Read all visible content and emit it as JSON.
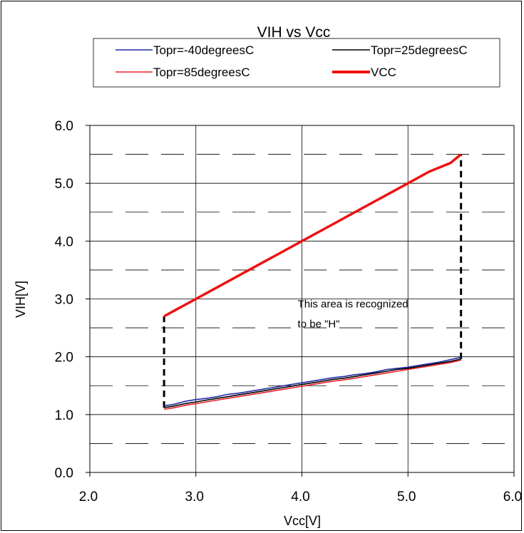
{
  "chart_data": {
    "type": "line",
    "title": "VIH vs Vcc",
    "xlabel": "Vcc[V]",
    "ylabel": "VIH[V]",
    "xlim": [
      2.0,
      6.0
    ],
    "ylim": [
      0.0,
      6.0
    ],
    "xticks": [
      2.0,
      3.0,
      4.0,
      5.0,
      6.0
    ],
    "xtick_labels": [
      "2.0",
      "3.0",
      "4.0",
      "5.0",
      "6.0"
    ],
    "yticks": [
      0.0,
      1.0,
      2.0,
      3.0,
      4.0,
      5.0,
      6.0
    ],
    "ytick_labels": [
      "0.0",
      "1.0",
      "2.0",
      "3.0",
      "4.0",
      "5.0",
      "6.0"
    ],
    "grid": true,
    "legend_position": "top",
    "series": [
      {
        "name": "Topr=-40degreesC",
        "color": "#1f2aa8",
        "x": [
          2.7,
          2.8,
          2.9,
          3.0,
          3.1,
          3.2,
          3.3,
          3.4,
          3.5,
          3.6,
          3.7,
          3.8,
          3.9,
          4.0,
          4.1,
          4.2,
          4.3,
          4.4,
          4.5,
          4.6,
          4.7,
          4.8,
          4.9,
          5.0,
          5.1,
          5.2,
          5.3,
          5.4,
          5.5
        ],
        "y": [
          1.15,
          1.18,
          1.23,
          1.26,
          1.28,
          1.31,
          1.35,
          1.37,
          1.4,
          1.43,
          1.46,
          1.49,
          1.52,
          1.55,
          1.58,
          1.61,
          1.64,
          1.66,
          1.69,
          1.71,
          1.74,
          1.78,
          1.8,
          1.82,
          1.85,
          1.88,
          1.91,
          1.95,
          1.99
        ]
      },
      {
        "name": "Topr=25degreesC",
        "color": "#000000",
        "x": [
          2.7,
          2.8,
          2.9,
          3.0,
          3.1,
          3.2,
          3.3,
          3.4,
          3.5,
          3.6,
          3.7,
          3.8,
          3.9,
          4.0,
          4.1,
          4.2,
          4.3,
          4.4,
          4.5,
          4.6,
          4.7,
          4.8,
          4.9,
          5.0,
          5.1,
          5.2,
          5.3,
          5.4,
          5.5
        ],
        "y": [
          1.12,
          1.15,
          1.19,
          1.22,
          1.25,
          1.28,
          1.31,
          1.34,
          1.37,
          1.4,
          1.43,
          1.46,
          1.49,
          1.52,
          1.55,
          1.58,
          1.61,
          1.63,
          1.66,
          1.69,
          1.72,
          1.75,
          1.78,
          1.8,
          1.83,
          1.86,
          1.89,
          1.92,
          1.96
        ]
      },
      {
        "name": "Topr=85degreesC",
        "color": "#e8202a",
        "x": [
          2.7,
          2.8,
          2.9,
          3.0,
          3.1,
          3.2,
          3.3,
          3.4,
          3.5,
          3.6,
          3.7,
          3.8,
          3.9,
          4.0,
          4.1,
          4.2,
          4.3,
          4.4,
          4.5,
          4.6,
          4.7,
          4.8,
          4.9,
          5.0,
          5.1,
          5.2,
          5.3,
          5.4,
          5.5
        ],
        "y": [
          1.09,
          1.12,
          1.16,
          1.19,
          1.22,
          1.25,
          1.28,
          1.31,
          1.34,
          1.37,
          1.4,
          1.43,
          1.46,
          1.49,
          1.52,
          1.55,
          1.58,
          1.6,
          1.63,
          1.66,
          1.69,
          1.72,
          1.75,
          1.78,
          1.81,
          1.84,
          1.87,
          1.9,
          1.94
        ]
      },
      {
        "name": "VCC",
        "color": "#ee1111",
        "bold": true,
        "x": [
          2.7,
          2.8,
          2.9,
          3.0,
          3.2,
          3.4,
          3.6,
          3.8,
          4.0,
          4.2,
          4.4,
          4.6,
          4.8,
          5.0,
          5.2,
          5.4,
          5.5
        ],
        "y": [
          2.7,
          2.8,
          2.9,
          3.0,
          3.2,
          3.4,
          3.6,
          3.8,
          4.0,
          4.2,
          4.4,
          4.6,
          4.8,
          5.0,
          5.2,
          5.35,
          5.5
        ]
      }
    ],
    "boundary_lines": [
      {
        "x": [
          2.7,
          2.7
        ],
        "y": [
          1.12,
          2.7
        ]
      },
      {
        "x": [
          5.5,
          5.5
        ],
        "y": [
          1.96,
          5.5
        ]
      }
    ],
    "annotation": {
      "lines": [
        "This area is recognized",
        "to be \"H\""
      ],
      "x": 3.96,
      "y": 2.85
    }
  }
}
